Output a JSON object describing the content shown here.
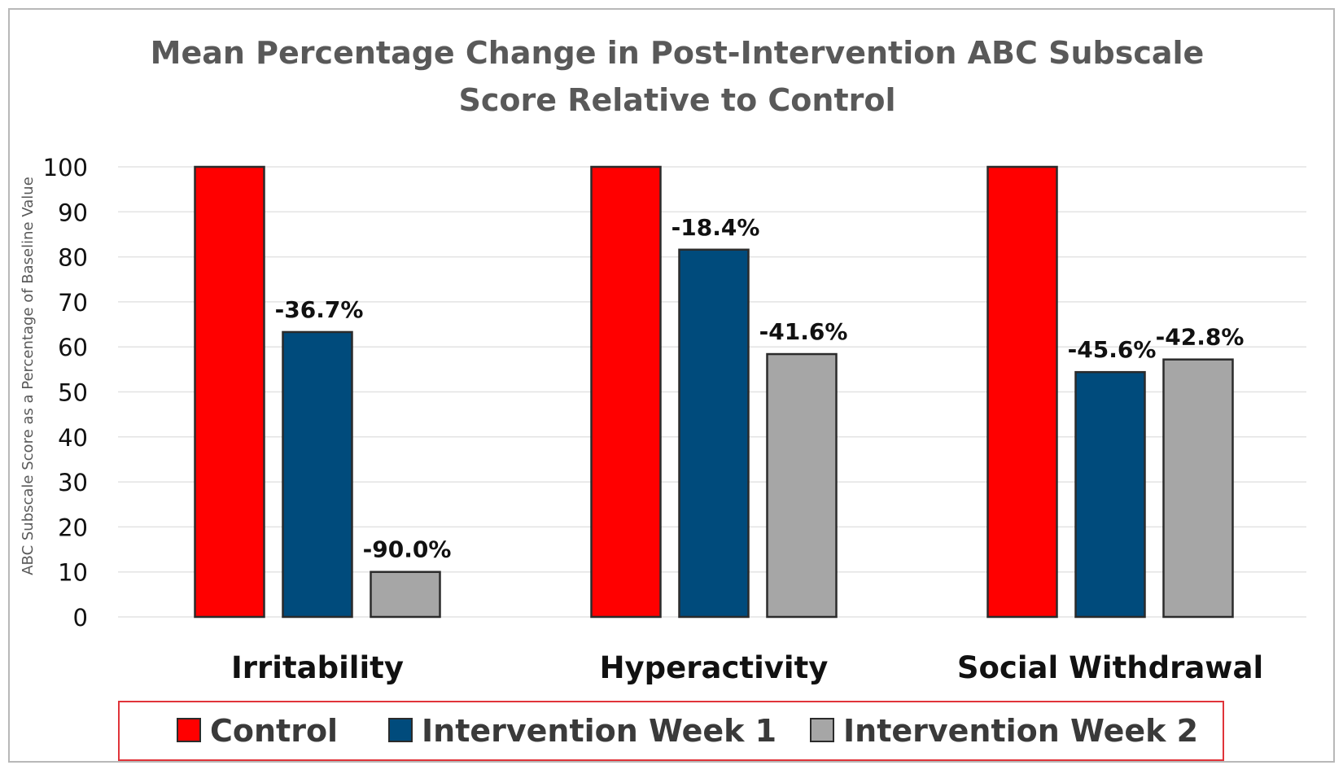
{
  "chart_data": {
    "type": "bar",
    "title_lines": [
      "Mean Percentage Change in Post-Intervention ABC Subscale",
      "Score Relative to Control"
    ],
    "ylabel": "ABC Subscale Score as a Percentage of Baseline Value",
    "xlabel": "",
    "ylim": [
      0,
      100
    ],
    "yticks": [
      0,
      10,
      20,
      30,
      40,
      50,
      60,
      70,
      80,
      90,
      100
    ],
    "grid": true,
    "legend_position": "bottom",
    "categories": [
      "Irritability",
      "Hyperactivity",
      "Social Withdrawal"
    ],
    "series": [
      {
        "name": "Control",
        "color": "#ff0000",
        "values": [
          100,
          100,
          100
        ],
        "labels": [
          "",
          "",
          ""
        ]
      },
      {
        "name": "Intervention Week 1",
        "color": "#004b7c",
        "values": [
          63.3,
          81.6,
          54.4
        ],
        "labels": [
          "-36.7%",
          "-18.4%",
          "-45.6%"
        ]
      },
      {
        "name": "Intervention Week 2",
        "color": "#a6a6a6",
        "values": [
          10.0,
          58.4,
          57.2
        ],
        "labels": [
          "-90.0%",
          "-41.6%",
          "-42.8%"
        ]
      }
    ],
    "legend_border_color": "#e0343a"
  }
}
